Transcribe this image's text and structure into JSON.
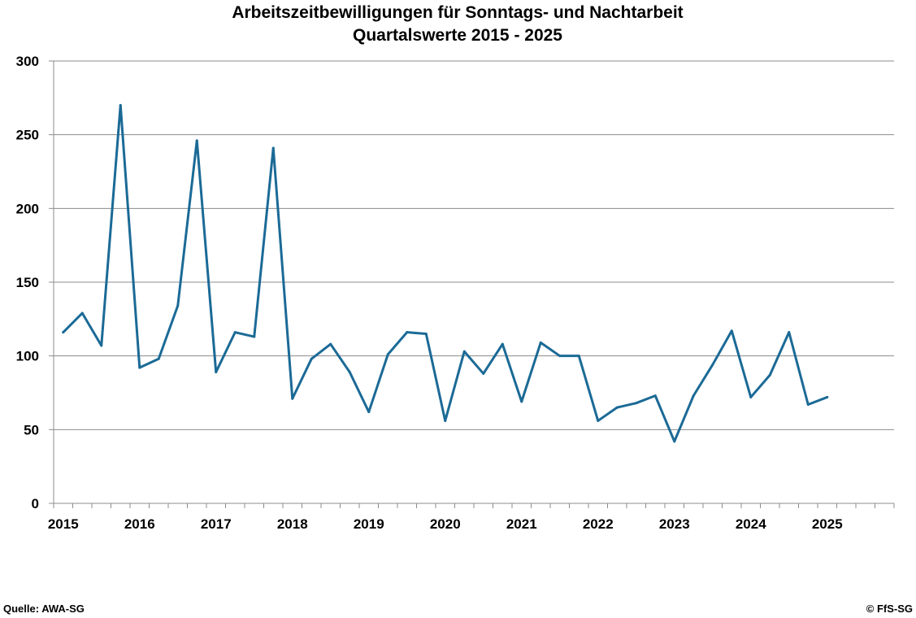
{
  "footer": {
    "source": "Quelle: AWA-SG",
    "copyright": "© FfS-SG"
  },
  "chart_data": {
    "type": "line",
    "title": "Arbeitszeitbewilligungen für Sonntags- und Nachtarbeit",
    "subtitle": "Quartalswerte 2015 - 2025",
    "xlabel": "",
    "ylabel": "",
    "ylim": [
      0,
      300
    ],
    "yticks": [
      0,
      50,
      100,
      150,
      200,
      250,
      300
    ],
    "year_labels": [
      "2015",
      "2016",
      "2017",
      "2018",
      "2019",
      "2020",
      "2021",
      "2022",
      "2023",
      "2024",
      "2025"
    ],
    "quarters_per_year": 4,
    "grid": "horizontal",
    "line_color": "#1b6a96",
    "series": [
      {
        "values": [
          116,
          129,
          107,
          270,
          92,
          98,
          134,
          246,
          89,
          116,
          113,
          241,
          71,
          98,
          108,
          89,
          62,
          101,
          116,
          115,
          56,
          103,
          88,
          108,
          69,
          109,
          100,
          100,
          56,
          65,
          68,
          73,
          42,
          73,
          94,
          117,
          72,
          87,
          116,
          67,
          72
        ]
      }
    ]
  }
}
